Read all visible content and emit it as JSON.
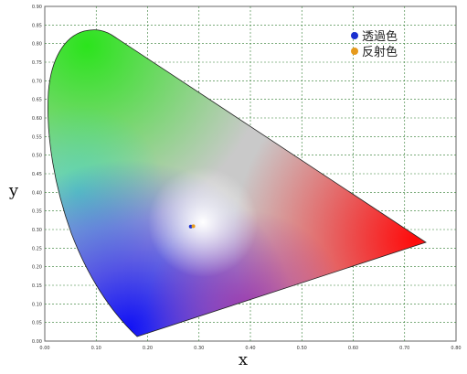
{
  "chart_data": {
    "type": "scatter",
    "title": "",
    "xlabel": "x",
    "ylabel": "y",
    "xlim": [
      0.0,
      0.8
    ],
    "ylim": [
      0.0,
      0.9
    ],
    "x_ticks": [
      "0.00",
      "0.10",
      "0.20",
      "0.30",
      "0.40",
      "0.50",
      "0.60",
      "0.70",
      "0.80"
    ],
    "y_ticks": [
      "0.00",
      "0.05",
      "0.10",
      "0.15",
      "0.20",
      "0.25",
      "0.30",
      "0.35",
      "0.40",
      "0.45",
      "0.50",
      "0.55",
      "0.60",
      "0.65",
      "0.70",
      "0.75",
      "0.80",
      "0.85",
      "0.90"
    ],
    "grid": true,
    "legend_position": "top-right",
    "series": [
      {
        "name": "透過色",
        "color": "#1a2fd0",
        "x": [
          0.284
        ],
        "y": [
          0.308
        ]
      },
      {
        "name": "反射色",
        "color": "#e69a1c",
        "x": [
          0.289
        ],
        "y": [
          0.309
        ]
      }
    ]
  }
}
